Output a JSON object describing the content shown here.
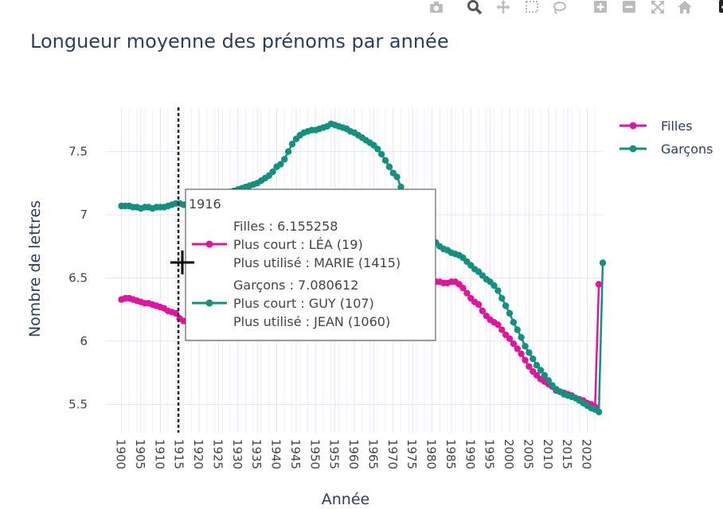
{
  "modebar": {
    "icons": [
      "camera-icon",
      "zoom-icon",
      "pan-icon",
      "box-select-icon",
      "lasso-icon",
      "zoom-in-icon",
      "zoom-out-icon",
      "autoscale-icon",
      "home-icon",
      "plotly-logo-icon"
    ]
  },
  "chart_data": {
    "type": "line",
    "title": "Longueur moyenne des prénoms par année",
    "xlabel": "Année",
    "ylabel": "Nombre de lettres",
    "xlim": [
      1896,
      2024
    ],
    "ylim": [
      5.27,
      7.85
    ],
    "xticks": [
      "1900",
      "1905",
      "1910",
      "1915",
      "1920",
      "1925",
      "1930",
      "1935",
      "1940",
      "1945",
      "1950",
      "1955",
      "1960",
      "1965",
      "1970",
      "1975",
      "1980",
      "1985",
      "1990",
      "1995",
      "2000",
      "2005",
      "2010",
      "2015",
      "2020"
    ],
    "yticks": [
      "5.5",
      "6",
      "6.5",
      "7",
      "7.5"
    ],
    "grid": true,
    "legend_position": "top-right",
    "x_start": 1900,
    "series": [
      {
        "name": "Filles",
        "color": "#e0149e",
        "values": [
          6.33,
          6.34,
          6.34,
          6.33,
          6.32,
          6.31,
          6.3,
          6.3,
          6.29,
          6.28,
          6.27,
          6.26,
          6.24,
          6.23,
          6.22,
          6.18,
          6.16,
          6.15,
          6.14,
          6.16,
          6.17,
          6.19,
          6.2,
          6.21,
          6.22,
          6.23,
          6.24,
          6.25,
          6.26,
          6.27,
          6.28,
          6.29,
          6.3,
          6.31,
          6.32,
          6.33,
          6.34,
          6.35,
          6.36,
          6.37,
          6.38,
          6.39,
          6.4,
          6.42,
          6.43,
          6.44,
          6.46,
          6.47,
          6.48,
          6.49,
          6.5,
          6.51,
          6.52,
          6.52,
          6.53,
          6.54,
          6.55,
          6.55,
          6.56,
          6.56,
          6.57,
          6.57,
          6.57,
          6.56,
          6.55,
          6.54,
          6.53,
          6.53,
          6.52,
          6.52,
          6.51,
          6.51,
          6.5,
          6.5,
          6.5,
          6.49,
          6.49,
          6.48,
          6.48,
          6.48,
          6.47,
          6.47,
          6.47,
          6.46,
          6.46,
          6.47,
          6.47,
          6.45,
          6.42,
          6.38,
          6.34,
          6.31,
          6.29,
          6.24,
          6.2,
          6.17,
          6.15,
          6.13,
          6.09,
          6.05,
          6.02,
          5.98,
          5.94,
          5.9,
          5.85,
          5.8,
          5.76,
          5.73,
          5.7,
          5.68,
          5.66,
          5.64,
          5.61,
          5.6,
          5.59,
          5.58,
          5.57,
          5.55,
          5.54,
          5.53,
          5.51,
          5.5,
          5.48,
          6.45
        ]
      },
      {
        "name": "Garçons",
        "color": "#14917e",
        "values": [
          7.07,
          7.07,
          7.07,
          7.06,
          7.06,
          7.05,
          7.06,
          7.06,
          7.05,
          7.06,
          7.06,
          7.06,
          7.07,
          7.08,
          7.09,
          7.09,
          7.08,
          7.08,
          7.08,
          7.09,
          7.1,
          7.11,
          7.12,
          7.13,
          7.14,
          7.15,
          7.16,
          7.17,
          7.18,
          7.19,
          7.2,
          7.21,
          7.22,
          7.23,
          7.24,
          7.25,
          7.27,
          7.29,
          7.31,
          7.34,
          7.38,
          7.4,
          7.44,
          7.5,
          7.56,
          7.6,
          7.63,
          7.65,
          7.66,
          7.67,
          7.67,
          7.68,
          7.69,
          7.7,
          7.72,
          7.71,
          7.7,
          7.69,
          7.68,
          7.66,
          7.65,
          7.63,
          7.61,
          7.59,
          7.57,
          7.55,
          7.52,
          7.48,
          7.43,
          7.38,
          7.33,
          7.3,
          7.22,
          7.15,
          7.08,
          7.02,
          6.98,
          6.94,
          6.9,
          6.86,
          6.82,
          6.78,
          6.75,
          6.73,
          6.72,
          6.7,
          6.69,
          6.68,
          6.66,
          6.63,
          6.6,
          6.57,
          6.55,
          6.52,
          6.49,
          6.47,
          6.44,
          6.4,
          6.34,
          6.28,
          6.22,
          6.15,
          6.09,
          6.03,
          5.96,
          5.91,
          5.86,
          5.81,
          5.77,
          5.73,
          5.69,
          5.65,
          5.62,
          5.6,
          5.58,
          5.57,
          5.56,
          5.55,
          5.53,
          5.51,
          5.49,
          5.47,
          5.46,
          5.44,
          6.62
        ]
      }
    ],
    "hover": {
      "year": "1916",
      "filles_line1": "Filles : 6.155258",
      "filles_line2": "Plus court : LÉA (19)",
      "filles_line3": "Plus utilisé : MARIE (1415)",
      "garcons_line1": "Garçons : 7.080612",
      "garcons_line2": "Plus court : GUY (107)",
      "garcons_line3": "Plus utilisé : JEAN (1060)"
    }
  }
}
